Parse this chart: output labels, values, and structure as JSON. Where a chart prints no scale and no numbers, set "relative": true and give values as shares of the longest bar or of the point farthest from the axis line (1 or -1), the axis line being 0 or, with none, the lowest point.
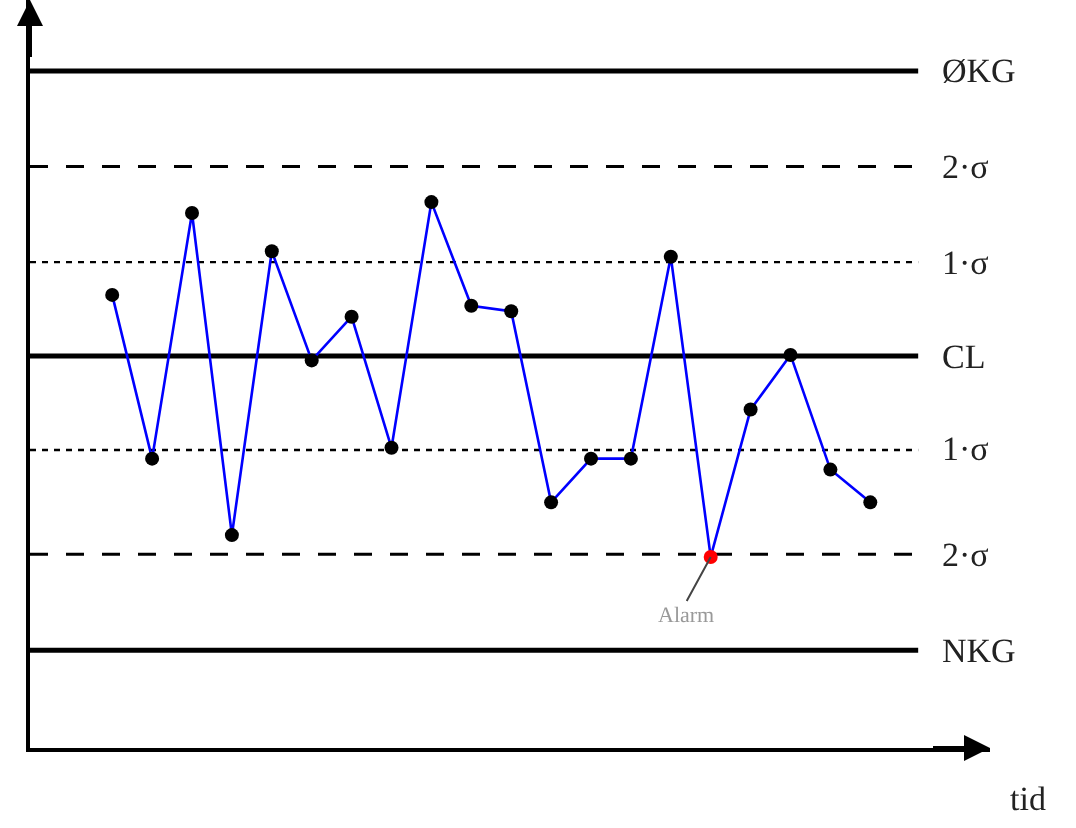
{
  "chart_data": {
    "type": "line",
    "relative": true,
    "xlabel": "tid",
    "categories": [
      null,
      null,
      null,
      null,
      null,
      null,
      null,
      null,
      null,
      null,
      null,
      null,
      null,
      null,
      null,
      null,
      null,
      null,
      null,
      null
    ],
    "series": [
      {
        "color": "#0000ff",
        "values": [
          0.83,
          0.53,
          0.98,
          0.39,
          0.91,
          0.71,
          0.79,
          0.55,
          1,
          0.81,
          0.8,
          0.45,
          0.53,
          0.53,
          0.9,
          0.35,
          0.62,
          0.72,
          0.51,
          0.45
        ],
        "colors": [
          "#000000",
          "#000000",
          "#000000",
          "#000000",
          "#000000",
          "#000000",
          "#000000",
          "#000000",
          "#000000",
          "#000000",
          "#000000",
          "#000000",
          "#000000",
          "#000000",
          "#000000",
          "#ff0000",
          "#000000",
          "#000000",
          "#000000",
          "#000000"
        ]
      }
    ],
    "ref_lines": [
      {
        "axis": "y",
        "value": 1.24,
        "label": "ØKG",
        "color": "#000000",
        "line_style": "solid"
      },
      {
        "axis": "y",
        "value": 1.065,
        "label": "2·σ",
        "color": "#000000",
        "line_style": "dashed"
      },
      {
        "axis": "y",
        "value": 0.89,
        "label": "1·σ",
        "color": "#000000",
        "line_style": "dotted"
      },
      {
        "axis": "y",
        "value": 0.718,
        "label": "CL",
        "color": "#000000",
        "line_style": "solid"
      },
      {
        "axis": "y",
        "value": 0.546,
        "label": "1·σ",
        "color": "#000000",
        "line_style": "dotted"
      },
      {
        "axis": "y",
        "value": 0.355,
        "label": "2·σ",
        "color": "#000000",
        "line_style": "dashed"
      },
      {
        "axis": "y",
        "value": 0.179,
        "label": "NKG",
        "color": "#000000",
        "line_style": "solid"
      }
    ],
    "annotations": [
      {
        "text": "Alarm",
        "y": 0.35
      }
    ],
    "marker": "circle",
    "line_style": "solid"
  }
}
